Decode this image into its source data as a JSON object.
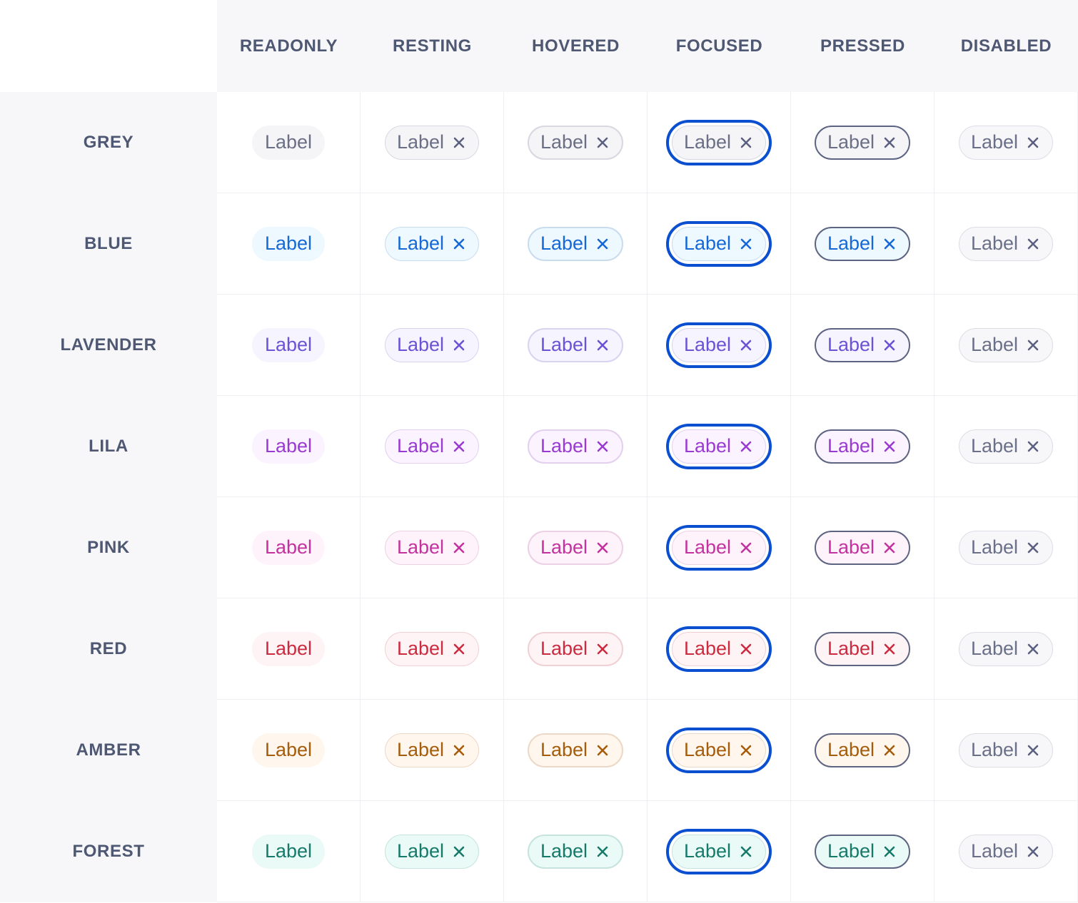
{
  "columns": [
    {
      "key": "readonly",
      "label": "READONLY"
    },
    {
      "key": "resting",
      "label": "RESTING"
    },
    {
      "key": "hovered",
      "label": "HOVERED"
    },
    {
      "key": "focused",
      "label": "FOCUSED"
    },
    {
      "key": "pressed",
      "label": "PRESSED"
    },
    {
      "key": "disabled",
      "label": "DISABLED"
    }
  ],
  "tag_label": "Label",
  "focus_ring_color": "#0b4fd1",
  "pressed_border_color": "#5d6482",
  "disabled_colors": {
    "text": "#6b7089",
    "bg": "#f7f7f9",
    "border": "#dcdde5",
    "icon": "#5b6080"
  },
  "rows": [
    {
      "key": "grey",
      "label": "GREY",
      "text": "#6a6f86",
      "bg": "#f5f5f8",
      "border": "#d7d8e0",
      "icon": "#5b6080"
    },
    {
      "key": "blue",
      "label": "BLUE",
      "text": "#1568d6",
      "bg": "#eef8ff",
      "border": "#c9dcee",
      "icon": "#1568d6"
    },
    {
      "key": "lavender",
      "label": "LAVENDER",
      "text": "#6b52d6",
      "bg": "#f6f4ff",
      "border": "#d9d3f0",
      "icon": "#6b52d6"
    },
    {
      "key": "lila",
      "label": "LILA",
      "text": "#9b3ad2",
      "bg": "#fbf3ff",
      "border": "#e2d0ee",
      "icon": "#9b3ad2"
    },
    {
      "key": "pink",
      "label": "PINK",
      "text": "#c3329f",
      "bg": "#fff3fb",
      "border": "#ecd0e3",
      "icon": "#c3329f"
    },
    {
      "key": "red",
      "label": "RED",
      "text": "#cc2b3f",
      "bg": "#fff4f5",
      "border": "#efd0d4",
      "icon": "#cc2b3f"
    },
    {
      "key": "amber",
      "label": "AMBER",
      "text": "#a55c0b",
      "bg": "#fff6ee",
      "border": "#ecd8c6",
      "icon": "#a55c0b"
    },
    {
      "key": "forest",
      "label": "FOREST",
      "text": "#167a6a",
      "bg": "#eafaf7",
      "border": "#c6e3dd",
      "icon": "#167a6a"
    }
  ]
}
